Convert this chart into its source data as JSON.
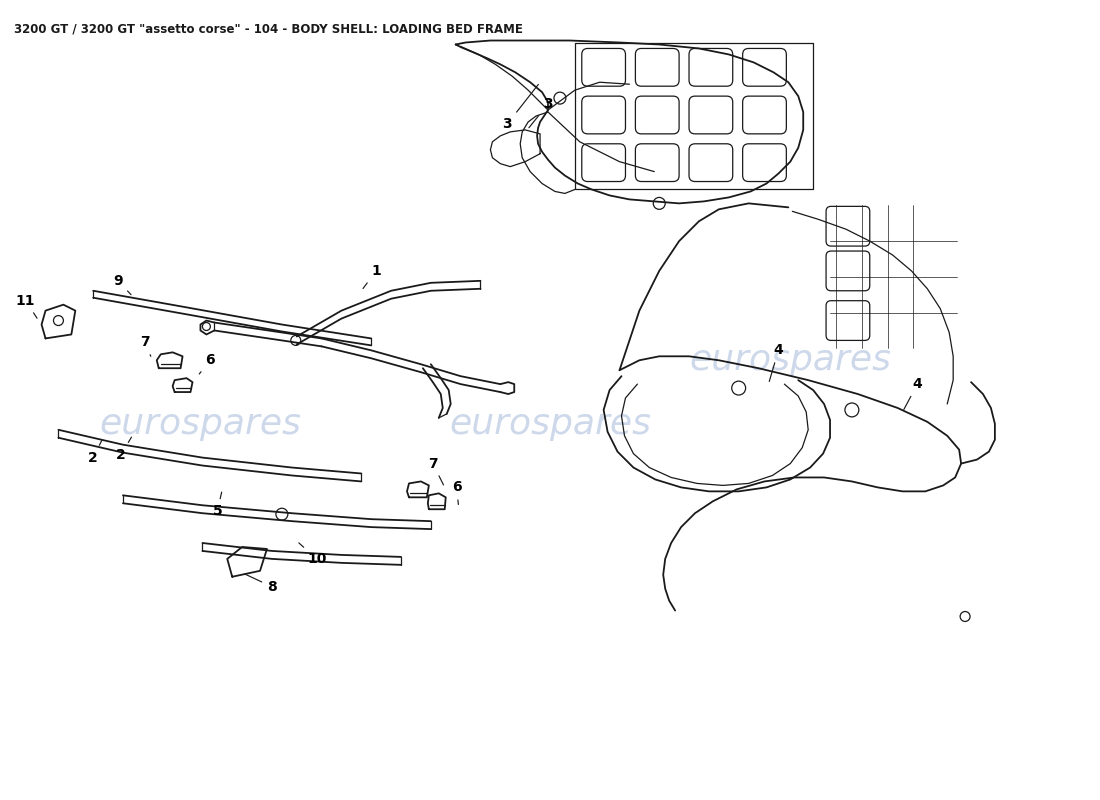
{
  "title": "3200 GT / 3200 GT \"assetto corse\" - 104 - BODY SHELL: LOADING BED FRAME",
  "title_fontsize": 8.5,
  "background_color": "#ffffff",
  "line_color": "#1a1a1a",
  "watermark_color": "#c8d4e8",
  "watermark_text": "eurospares",
  "watermark1": [
    0.18,
    0.47
  ],
  "watermark2": [
    0.5,
    0.47
  ],
  "watermark3": [
    0.72,
    0.55
  ]
}
